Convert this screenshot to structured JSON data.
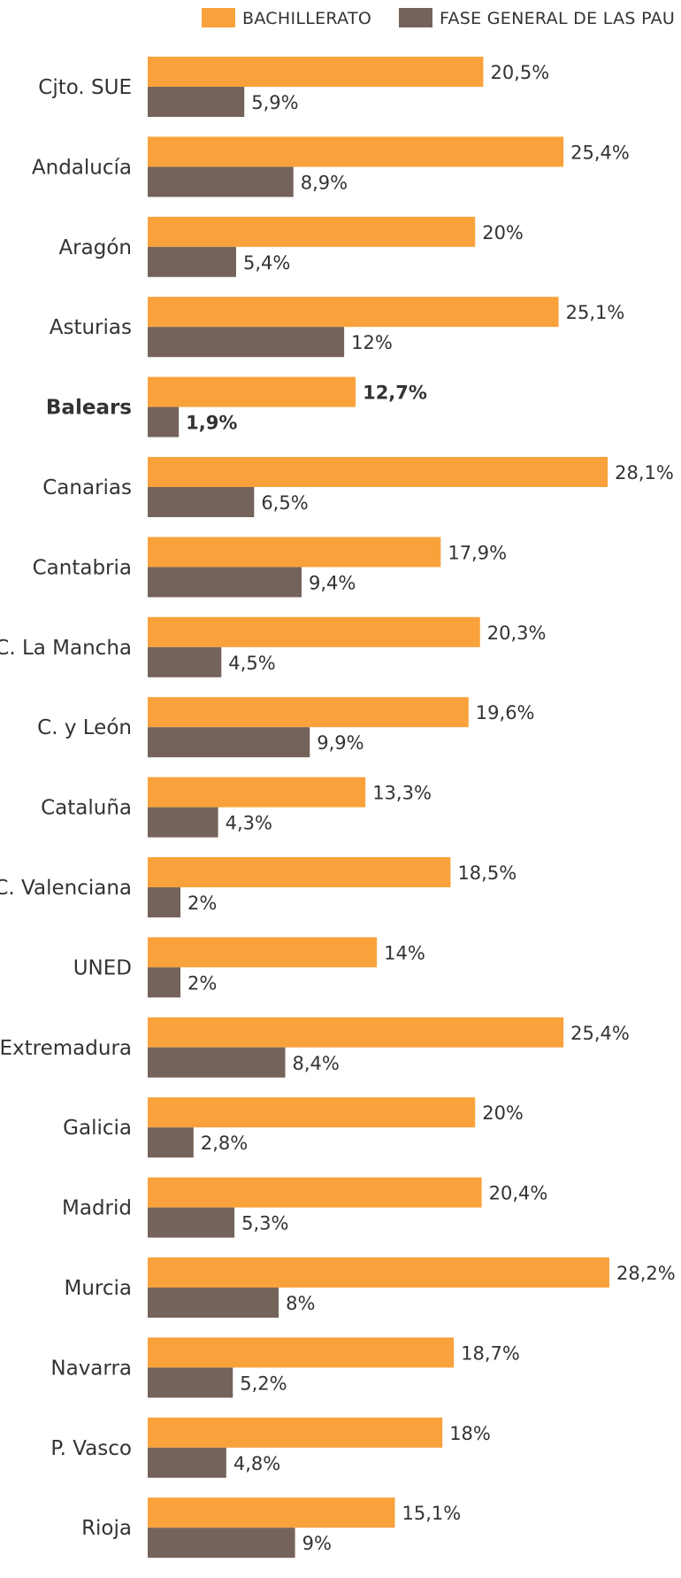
{
  "chart_data": {
    "type": "bar",
    "orientation": "horizontal",
    "legend_position": "top-right",
    "grid": false,
    "xlim": [
      0,
      28.2
    ],
    "categories": [
      "Cjto. SUE",
      "Andalucía",
      "Aragón",
      "Asturias",
      "Balears",
      "Canarias",
      "Cantabria",
      "C. La Mancha",
      "C. y León",
      "Cataluña",
      "C. Valenciana",
      "UNED",
      "Extremadura",
      "Galicia",
      "Madrid",
      "Murcia",
      "Navarra",
      "P. Vasco",
      "Rioja"
    ],
    "highlight_category": "Balears",
    "series": [
      {
        "name": "BACHILLERATO",
        "color": "#f9a23c",
        "values": [
          20.5,
          25.4,
          20,
          25.1,
          12.7,
          28.1,
          17.9,
          20.3,
          19.6,
          13.3,
          18.5,
          14,
          25.4,
          20,
          20.4,
          28.2,
          18.7,
          18,
          15.1
        ],
        "labels": [
          "20,5%",
          "25,4%",
          "20%",
          "25,1%",
          "12,7%",
          "28,1%",
          "17,9%",
          "20,3%",
          "19,6%",
          "13,3%",
          "18,5%",
          "14%",
          "25,4%",
          "20%",
          "20,4%",
          "28,2%",
          "18,7%",
          "18%",
          "15,1%"
        ]
      },
      {
        "name": "FASE GENERAL DE LAS PAU",
        "color": "#74635a",
        "values": [
          5.9,
          8.9,
          5.4,
          12,
          1.9,
          6.5,
          9.4,
          4.5,
          9.9,
          4.3,
          2,
          2,
          8.4,
          2.8,
          5.3,
          8,
          5.2,
          4.8,
          9
        ],
        "labels": [
          "5,9%",
          "8,9%",
          "5,4%",
          "12%",
          "1,9%",
          "6,5%",
          "9,4%",
          "4,5%",
          "9,9%",
          "4,3%",
          "2%",
          "2%",
          "8,4%",
          "2,8%",
          "5,3%",
          "8%",
          "5,2%",
          "4,8%",
          "9%"
        ]
      }
    ]
  }
}
